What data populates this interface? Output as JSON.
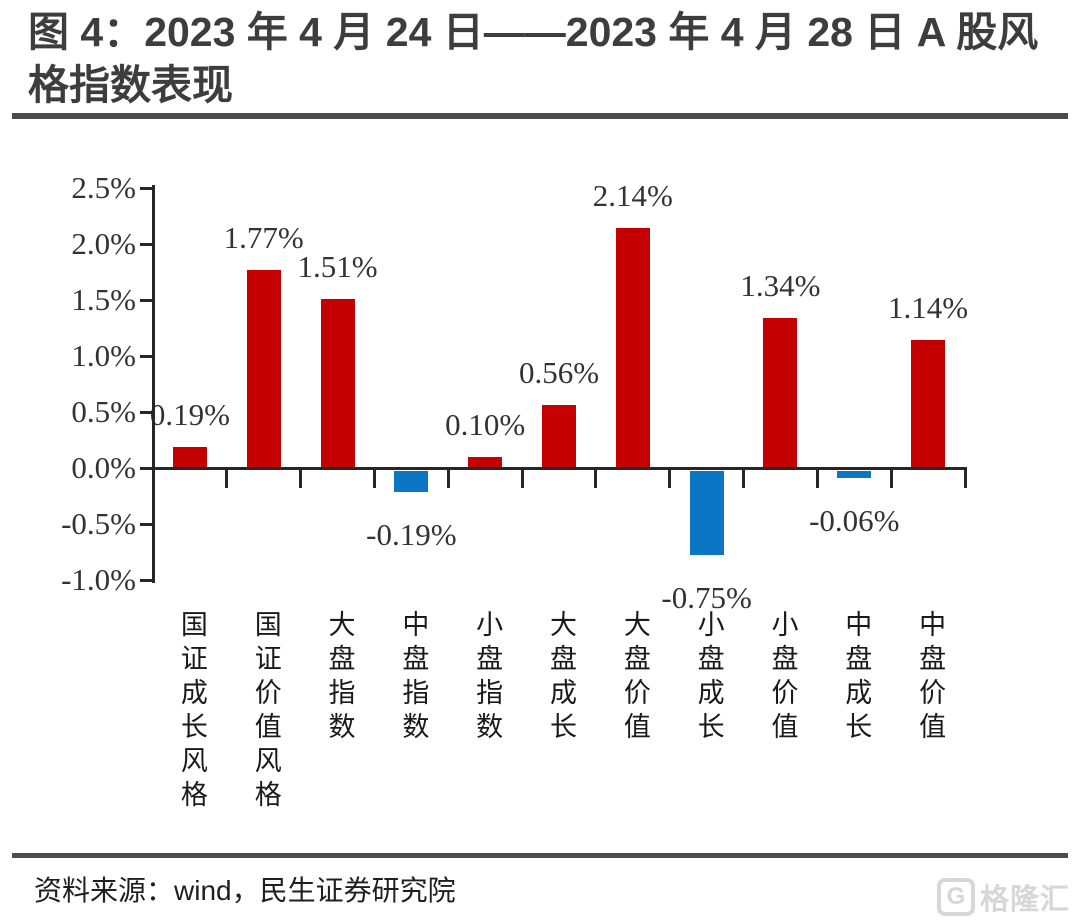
{
  "title": "图 4：2023 年 4 月 24 日——2023 年 4 月 28 日 A 股风格指数表现",
  "source": "资料来源：wind，民生证券研究院",
  "logo": {
    "icon": "G",
    "text": "格隆汇"
  },
  "colors": {
    "bar_positive": "#c40000",
    "bar_negative": "#0b76c4",
    "axis": "#262626",
    "title_text": "#3d3d3d",
    "rule": "#4c4c4c"
  },
  "chart_data": {
    "type": "bar",
    "title": "",
    "xlabel": "",
    "ylabel": "",
    "categories": [
      "国证成长风格",
      "国证价值风格",
      "大盘指数",
      "中盘指数",
      "小盘指数",
      "大盘成长",
      "大盘价值",
      "小盘成长",
      "小盘价值",
      "中盘成长",
      "中盘价值"
    ],
    "values": [
      0.19,
      1.77,
      1.51,
      -0.19,
      0.1,
      0.56,
      2.14,
      -0.75,
      1.34,
      -0.06,
      1.14
    ],
    "data_labels": [
      "0.19%",
      "1.77%",
      "1.51%",
      "-0.19%",
      "0.10%",
      "0.56%",
      "2.14%",
      "-0.75%",
      "1.34%",
      "-0.06%",
      "1.14%"
    ],
    "y_tick_labels": [
      "2.5%",
      "2.0%",
      "1.5%",
      "1.0%",
      "0.5%",
      "0.0%",
      "-0.5%",
      "-1.0%"
    ],
    "ylim": [
      -1.0,
      2.5
    ],
    "grid": false,
    "legend": "none",
    "positive_color": "#c40000",
    "negative_color": "#0b76c4"
  }
}
